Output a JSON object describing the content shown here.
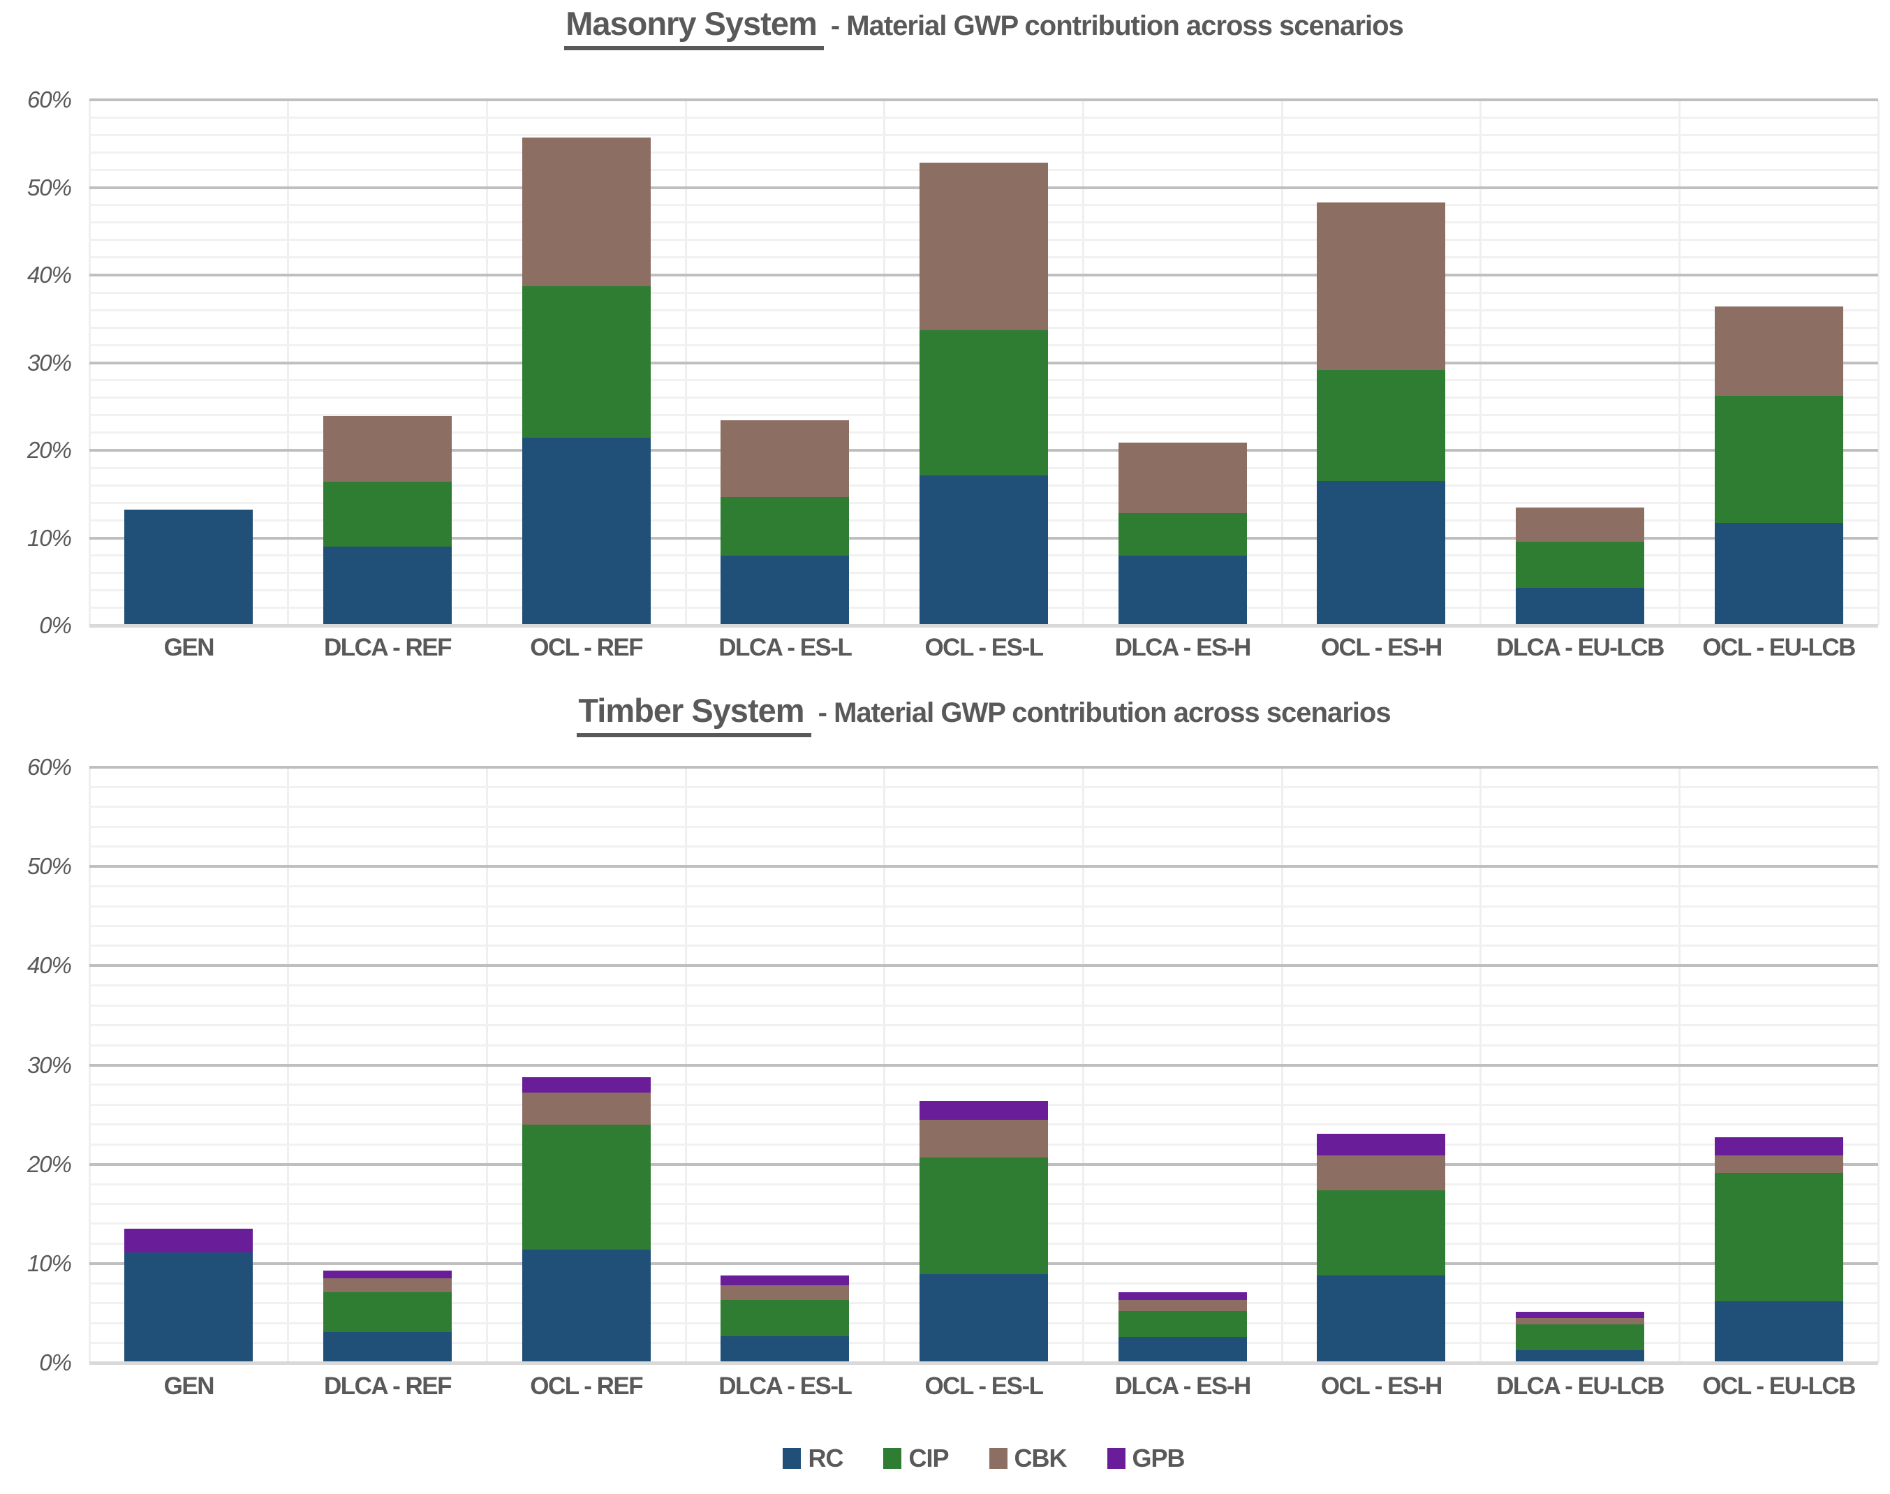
{
  "page_background": "#ffffff",
  "colors": {
    "rc": "#204f78",
    "cip": "#2e7d32",
    "cbk": "#8c6e63",
    "gpb": "#6a1d99",
    "text": "#595959",
    "grid_major": "#bfbfbf",
    "grid_minor": "#f1f1f1",
    "axis_line": "#d9d9d9"
  },
  "legend": {
    "position": "bottom-center",
    "items": [
      {
        "label": "RC",
        "color_key": "rc"
      },
      {
        "label": "CIP",
        "color_key": "cip"
      },
      {
        "label": "CBK",
        "color_key": "cbk"
      },
      {
        "label": "GPB",
        "color_key": "gpb"
      }
    ]
  },
  "chart_data": [
    {
      "id": "masonry",
      "type": "bar",
      "stacked": true,
      "title_main": "Masonry System",
      "title_sub": " - Material GWP contribution across scenarios",
      "xlabel": "",
      "ylabel": "",
      "ylim": [
        0,
        60
      ],
      "y_major_step": 10,
      "y_minor_step": 2,
      "grid": true,
      "y_tick_labels": [
        "0%",
        "10%",
        "20%",
        "30%",
        "40%",
        "50%",
        "60%"
      ],
      "categories": [
        "GEN",
        "DLCA - REF",
        "OCL - REF",
        "DLCA - ES-L",
        "OCL - ES-L",
        "DLCA - ES-H",
        "OCL - ES-H",
        "DLCA - EU-LCB",
        "OCL - EU-LCB"
      ],
      "series": [
        {
          "name": "RC",
          "color_key": "rc",
          "values": [
            13.2,
            9.0,
            21.4,
            8.0,
            17.1,
            8.0,
            16.5,
            4.3,
            11.7
          ]
        },
        {
          "name": "CIP",
          "color_key": "cip",
          "values": [
            0,
            7.4,
            17.3,
            6.7,
            16.6,
            4.8,
            12.7,
            5.3,
            14.5
          ]
        },
        {
          "name": "CBK",
          "color_key": "cbk",
          "values": [
            0,
            7.5,
            17.0,
            8.7,
            19.1,
            8.1,
            19.1,
            3.9,
            10.2
          ]
        },
        {
          "name": "GPB",
          "color_key": "gpb",
          "values": [
            0,
            0,
            0,
            0,
            0,
            0,
            0,
            0,
            0
          ]
        }
      ]
    },
    {
      "id": "timber",
      "type": "bar",
      "stacked": true,
      "title_main": "Timber System",
      "title_sub": " - Material GWP contribution across scenarios",
      "xlabel": "",
      "ylabel": "",
      "ylim": [
        0,
        60
      ],
      "y_major_step": 10,
      "y_minor_step": 2,
      "grid": true,
      "y_tick_labels": [
        "0%",
        "10%",
        "20%",
        "30%",
        "40%",
        "50%",
        "60%"
      ],
      "categories": [
        "GEN",
        "DLCA - REF",
        "OCL - REF",
        "DLCA - ES-L",
        "OCL - ES-L",
        "DLCA - ES-H",
        "OCL - ES-H",
        "DLCA - EU-LCB",
        "OCL - EU-LCB"
      ],
      "series": [
        {
          "name": "RC",
          "color_key": "rc",
          "values": [
            11.1,
            3.1,
            11.4,
            2.7,
            8.9,
            2.6,
            8.8,
            1.3,
            6.2
          ]
        },
        {
          "name": "CIP",
          "color_key": "cip",
          "values": [
            0,
            4.0,
            12.6,
            3.6,
            11.8,
            2.6,
            8.6,
            2.6,
            12.9
          ]
        },
        {
          "name": "CBK",
          "color_key": "cbk",
          "values": [
            0,
            1.4,
            3.2,
            1.5,
            3.8,
            1.1,
            3.5,
            0.6,
            1.8
          ]
        },
        {
          "name": "GPB",
          "color_key": "gpb",
          "values": [
            2.4,
            0.8,
            1.6,
            1.0,
            1.9,
            0.8,
            2.2,
            0.6,
            1.8
          ]
        }
      ]
    }
  ]
}
